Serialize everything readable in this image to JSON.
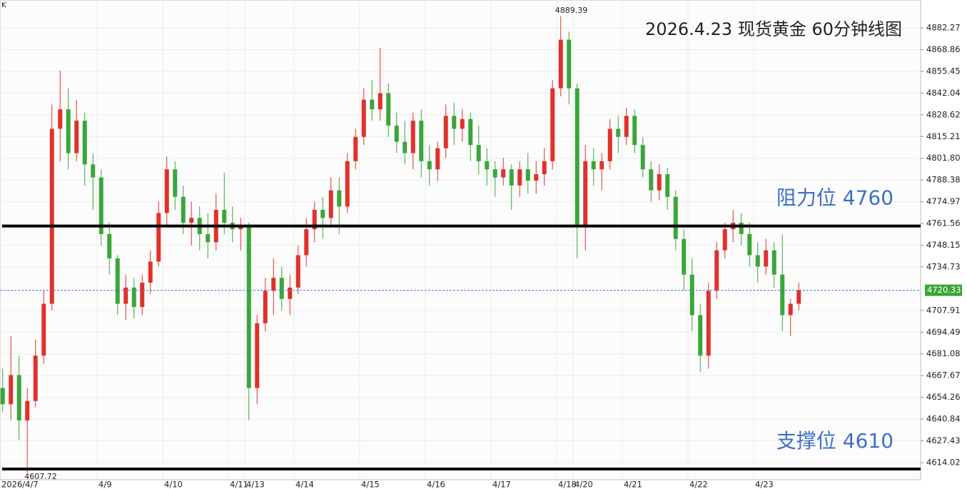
{
  "chart_data": {
    "type": "candlestick",
    "title": "2026.4.23 现货黄金 60分钟线图",
    "corner_label": "K",
    "up_color": "#e0312b",
    "down_color": "#3aa63a",
    "ylim": [
      4603.4,
      4899.5
    ],
    "yticks": [
      4882.27,
      4868.86,
      4855.45,
      4842.04,
      4828.62,
      4815.21,
      {
        "value": 4801.8,
        "label": "4801.80"
      },
      4788.38,
      4774.97,
      4761.56,
      4748.15,
      4734.73,
      4707.91,
      4694.49,
      4681.08,
      4667.67,
      4654.26,
      4640.84,
      4627.43,
      4614.02
    ],
    "grid": true,
    "annotations": [
      {
        "text": "阻力位 4760",
        "value": 4760
      },
      {
        "text": "支撑位 4610",
        "value": 4610
      }
    ],
    "categories": [
      "2026/4/7",
      null,
      null,
      null,
      null,
      null,
      null,
      null,
      null,
      null,
      null,
      null,
      "4/9",
      null,
      null,
      null,
      null,
      null,
      null,
      null,
      "4/10",
      null,
      null,
      null,
      null,
      null,
      null,
      null,
      "4/11",
      null,
      "4/13",
      null,
      null,
      null,
      null,
      null,
      "4/14",
      null,
      null,
      null,
      null,
      null,
      null,
      null,
      "4/15",
      null,
      null,
      null,
      null,
      null,
      null,
      null,
      "4/16",
      null,
      null,
      null,
      null,
      null,
      null,
      null,
      "4/17",
      null,
      null,
      null,
      null,
      null,
      null,
      null,
      "4/18",
      null,
      "4/20",
      null,
      null,
      null,
      null,
      null,
      "4/21",
      null,
      null,
      null,
      null,
      null,
      null,
      null,
      "4/22",
      null,
      null,
      null,
      null,
      null,
      null,
      null,
      "4/23",
      null,
      null,
      null,
      null,
      null
    ],
    "ohlc": [
      [
        4660,
        4672,
        4645,
        4650
      ],
      [
        4650,
        4692,
        4640,
        4668
      ],
      [
        4668,
        4680,
        4628,
        4640
      ],
      [
        4640,
        4660,
        4607.72,
        4652
      ],
      [
        4652,
        4690,
        4648,
        4680
      ],
      [
        4680,
        4720,
        4675,
        4712
      ],
      [
        4712,
        4835,
        4708,
        4820
      ],
      [
        4820,
        4856,
        4800,
        4832
      ],
      [
        4832,
        4845,
        4795,
        4805
      ],
      [
        4805,
        4838,
        4800,
        4825
      ],
      [
        4825,
        4830,
        4785,
        4798
      ],
      [
        4798,
        4805,
        4770,
        4790
      ],
      [
        4790,
        4795,
        4748,
        4755
      ],
      [
        4755,
        4762,
        4730,
        4740
      ],
      [
        4740,
        4742,
        4705,
        4712
      ],
      [
        4712,
        4730,
        4702,
        4722
      ],
      [
        4722,
        4728,
        4703,
        4710
      ],
      [
        4710,
        4730,
        4705,
        4725
      ],
      [
        4725,
        4745,
        4718,
        4738
      ],
      [
        4738,
        4775,
        4735,
        4768
      ],
      [
        4768,
        4803,
        4760,
        4795
      ],
      [
        4795,
        4800,
        4770,
        4778
      ],
      [
        4778,
        4785,
        4755,
        4762
      ],
      [
        4762,
        4775,
        4748,
        4765
      ],
      [
        4765,
        4772,
        4745,
        4755
      ],
      [
        4755,
        4768,
        4740,
        4750
      ],
      [
        4750,
        4780,
        4745,
        4770
      ],
      [
        4770,
        4793,
        4755,
        4762
      ],
      [
        4762,
        4772,
        4750,
        4758
      ],
      [
        4758,
        4765,
        4745,
        4760
      ],
      [
        4760,
        4762,
        4640,
        4660
      ],
      [
        4660,
        4705,
        4650,
        4700
      ],
      [
        4700,
        4728,
        4695,
        4720
      ],
      [
        4720,
        4740,
        4705,
        4728
      ],
      [
        4728,
        4735,
        4708,
        4715
      ],
      [
        4715,
        4730,
        4705,
        4722
      ],
      [
        4722,
        4748,
        4718,
        4742
      ],
      [
        4742,
        4765,
        4735,
        4758
      ],
      [
        4758,
        4775,
        4750,
        4770
      ],
      [
        4770,
        4778,
        4752,
        4765
      ],
      [
        4765,
        4790,
        4760,
        4782
      ],
      [
        4782,
        4790,
        4755,
        4772
      ],
      [
        4772,
        4805,
        4768,
        4800
      ],
      [
        4800,
        4820,
        4795,
        4815
      ],
      [
        4815,
        4845,
        4810,
        4838
      ],
      [
        4838,
        4850,
        4825,
        4832
      ],
      [
        4832,
        4870,
        4825,
        4842
      ],
      [
        4842,
        4848,
        4815,
        4822
      ],
      [
        4822,
        4830,
        4805,
        4812
      ],
      [
        4812,
        4825,
        4798,
        4805
      ],
      [
        4805,
        4830,
        4795,
        4825
      ],
      [
        4825,
        4832,
        4790,
        4800
      ],
      [
        4800,
        4810,
        4785,
        4795
      ],
      [
        4795,
        4812,
        4788,
        4808
      ],
      [
        4808,
        4835,
        4802,
        4828
      ],
      [
        4828,
        4836,
        4810,
        4820
      ],
      [
        4820,
        4832,
        4812,
        4826
      ],
      [
        4826,
        4830,
        4800,
        4810
      ],
      [
        4810,
        4822,
        4792,
        4800
      ],
      [
        4800,
        4808,
        4785,
        4795
      ],
      [
        4795,
        4800,
        4778,
        4790
      ],
      [
        4790,
        4802,
        4785,
        4795
      ],
      [
        4795,
        4798,
        4770,
        4785
      ],
      [
        4785,
        4800,
        4778,
        4795
      ],
      [
        4795,
        4805,
        4780,
        4788
      ],
      [
        4788,
        4800,
        4780,
        4792
      ],
      [
        4792,
        4808,
        4785,
        4800
      ],
      [
        4800,
        4850,
        4795,
        4845
      ],
      [
        4845,
        4889.39,
        4840,
        4875
      ],
      [
        4875,
        4880,
        4835,
        4845
      ],
      [
        4845,
        4848,
        4740,
        4760
      ],
      [
        4760,
        4810,
        4745,
        4800
      ],
      [
        4800,
        4808,
        4785,
        4795
      ],
      [
        4795,
        4805,
        4782,
        4800
      ],
      [
        4800,
        4826,
        4795,
        4820
      ],
      [
        4820,
        4828,
        4805,
        4815
      ],
      [
        4815,
        4833,
        4810,
        4828
      ],
      [
        4828,
        4832,
        4805,
        4810
      ],
      [
        4810,
        4815,
        4790,
        4795
      ],
      [
        4795,
        4800,
        4775,
        4782
      ],
      [
        4782,
        4798,
        4776,
        4792
      ],
      [
        4792,
        4796,
        4770,
        4778
      ],
      [
        4778,
        4782,
        4745,
        4752
      ],
      [
        4752,
        4758,
        4720,
        4730
      ],
      [
        4730,
        4740,
        4695,
        4705
      ],
      [
        4705,
        4712,
        4670,
        4680
      ],
      [
        4680,
        4725,
        4672,
        4720
      ],
      [
        4720,
        4750,
        4715,
        4745
      ],
      [
        4745,
        4762,
        4740,
        4758
      ],
      [
        4758,
        4770,
        4750,
        4762
      ],
      [
        4762,
        4768,
        4748,
        4755
      ],
      [
        4755,
        4762,
        4735,
        4742
      ],
      [
        4742,
        4750,
        4725,
        4735
      ],
      [
        4735,
        4752,
        4730,
        4745
      ],
      [
        4745,
        4750,
        4722,
        4730
      ],
      [
        4730,
        4755,
        4695,
        4705
      ],
      [
        4705,
        4715,
        4692,
        4712
      ],
      [
        4712,
        4725,
        4708,
        4720.33
      ]
    ]
  }
}
